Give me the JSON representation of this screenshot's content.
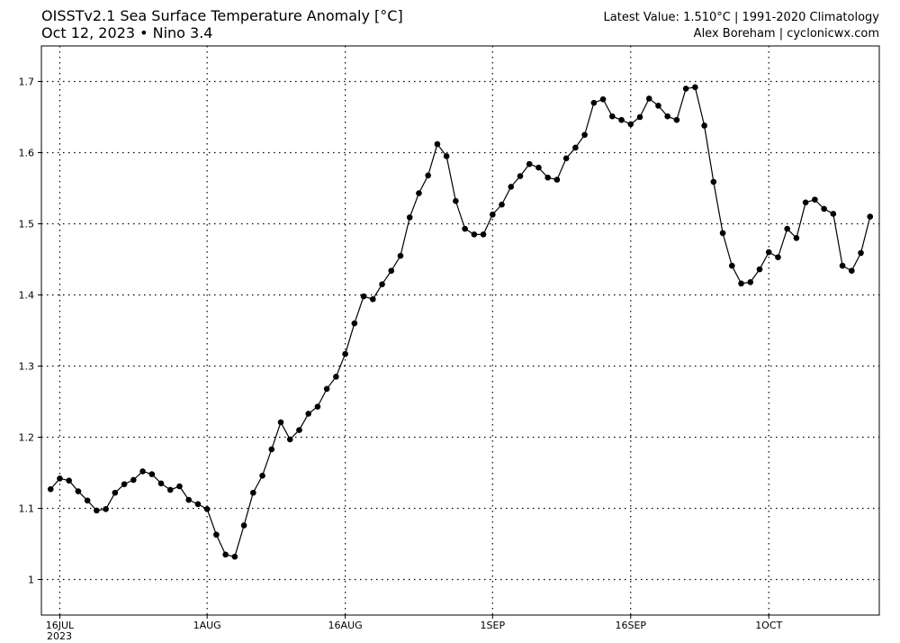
{
  "header": {
    "title_line1": "OISSTv2.1 Sea Surface Temperature Anomaly [°C]",
    "title_line2": "Oct 12, 2023 • Nino 3.4",
    "right_line1": "Latest Value: 1.510°C | 1991-2020 Climatology",
    "right_line2": "Alex Boreham | cyclonicwx.com"
  },
  "chart_data": {
    "type": "line",
    "title": "OISSTv2.1 Sea Surface Temperature Anomaly [°C]",
    "subtitle": "Oct 12, 2023 • Nino 3.4",
    "xlabel": "",
    "ylabel": "",
    "ylim": [
      0.95,
      1.75
    ],
    "grid": true,
    "line_color": "#000000",
    "marker": "filled circle",
    "y_ticks": [
      1.0,
      1.1,
      1.2,
      1.3,
      1.4,
      1.5,
      1.6,
      1.7
    ],
    "y_tick_labels": [
      "1",
      "1.1",
      "1.2",
      "1.3",
      "1.4",
      "1.5",
      "1.6",
      "1.7"
    ],
    "x_ticks": [
      {
        "date": "2023-07-16",
        "label": "16JUL",
        "sublabel": "2023"
      },
      {
        "date": "2023-08-01",
        "label": "1AUG",
        "sublabel": ""
      },
      {
        "date": "2023-08-16",
        "label": "16AUG",
        "sublabel": ""
      },
      {
        "date": "2023-09-01",
        "label": "1SEP",
        "sublabel": ""
      },
      {
        "date": "2023-09-16",
        "label": "16SEP",
        "sublabel": ""
      },
      {
        "date": "2023-10-01",
        "label": "1OCT",
        "sublabel": ""
      }
    ],
    "xlim": [
      "2023-07-14",
      "2023-10-13"
    ],
    "series": [
      {
        "x": [
          "2023-07-15",
          "2023-07-16",
          "2023-07-17",
          "2023-07-18",
          "2023-07-19",
          "2023-07-20",
          "2023-07-21",
          "2023-07-22",
          "2023-07-23",
          "2023-07-24",
          "2023-07-25",
          "2023-07-26",
          "2023-07-27",
          "2023-07-28",
          "2023-07-29",
          "2023-07-30",
          "2023-07-31",
          "2023-08-01",
          "2023-08-02",
          "2023-08-03",
          "2023-08-04",
          "2023-08-05",
          "2023-08-06",
          "2023-08-07",
          "2023-08-08",
          "2023-08-09",
          "2023-08-10",
          "2023-08-11",
          "2023-08-12",
          "2023-08-13",
          "2023-08-14",
          "2023-08-15",
          "2023-08-16",
          "2023-08-17",
          "2023-08-18",
          "2023-08-19",
          "2023-08-20",
          "2023-08-21",
          "2023-08-22",
          "2023-08-23",
          "2023-08-24",
          "2023-08-25",
          "2023-08-26",
          "2023-08-27",
          "2023-08-28",
          "2023-08-29",
          "2023-08-30",
          "2023-08-31",
          "2023-09-01",
          "2023-09-02",
          "2023-09-03",
          "2023-09-04",
          "2023-09-05",
          "2023-09-06",
          "2023-09-07",
          "2023-09-08",
          "2023-09-09",
          "2023-09-10",
          "2023-09-11",
          "2023-09-12",
          "2023-09-13",
          "2023-09-14",
          "2023-09-15",
          "2023-09-16",
          "2023-09-17",
          "2023-09-18",
          "2023-09-19",
          "2023-09-20",
          "2023-09-21",
          "2023-09-22",
          "2023-09-23",
          "2023-09-24",
          "2023-09-25",
          "2023-09-26",
          "2023-09-27",
          "2023-09-28",
          "2023-09-29",
          "2023-09-30",
          "2023-10-01",
          "2023-10-02",
          "2023-10-03",
          "2023-10-04",
          "2023-10-05",
          "2023-10-06",
          "2023-10-07",
          "2023-10-08",
          "2023-10-09",
          "2023-10-10",
          "2023-10-11",
          "2023-10-12"
        ],
        "values": [
          1.127,
          1.142,
          1.139,
          1.124,
          1.111,
          1.097,
          1.099,
          1.122,
          1.134,
          1.14,
          1.152,
          1.148,
          1.135,
          1.126,
          1.131,
          1.112,
          1.106,
          1.099,
          1.063,
          1.035,
          1.032,
          1.076,
          1.122,
          1.146,
          1.183,
          1.221,
          1.197,
          1.21,
          1.233,
          1.243,
          1.268,
          1.285,
          1.317,
          1.36,
          1.398,
          1.394,
          1.415,
          1.434,
          1.455,
          1.509,
          1.543,
          1.568,
          1.612,
          1.595,
          1.532,
          1.493,
          1.485,
          1.485,
          1.513,
          1.527,
          1.552,
          1.567,
          1.584,
          1.579,
          1.565,
          1.562,
          1.592,
          1.607,
          1.625,
          1.67,
          1.675,
          1.651,
          1.646,
          1.64,
          1.65,
          1.676,
          1.666,
          1.651,
          1.646,
          1.69,
          1.692,
          1.638,
          1.559,
          1.487,
          1.441,
          1.416,
          1.418,
          1.436,
          1.46,
          1.453,
          1.493,
          1.48,
          1.53,
          1.534,
          1.521,
          1.514,
          1.441,
          1.434,
          1.459,
          1.51
        ]
      }
    ]
  }
}
